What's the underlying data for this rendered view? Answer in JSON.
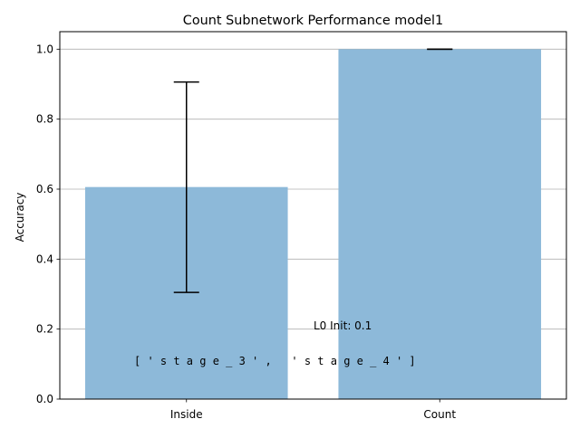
{
  "chart_data": {
    "type": "bar",
    "title": "Count Subnetwork Performance model1",
    "xlabel": "",
    "ylabel": "Accuracy",
    "categories": [
      "Inside",
      "Count"
    ],
    "values": [
      0.606,
      1.0
    ],
    "error_low": [
      0.305,
      1.0
    ],
    "error_high": [
      0.906,
      1.0
    ],
    "ylim": [
      0,
      1.05
    ],
    "yticks": [
      0.0,
      0.2,
      0.4,
      0.6,
      0.8,
      1.0
    ],
    "ytick_labels": [
      "0.0",
      "0.2",
      "0.4",
      "0.6",
      "0.8",
      "1.0"
    ],
    "grid": "y",
    "bar_color": "#8db9d9",
    "annotations": [
      {
        "text": "L0 Init: 0.1"
      },
      {
        "text": "[ ' s t a g e _ 3 ' ,   ' s t a g e _ 4 ' ]"
      }
    ]
  }
}
